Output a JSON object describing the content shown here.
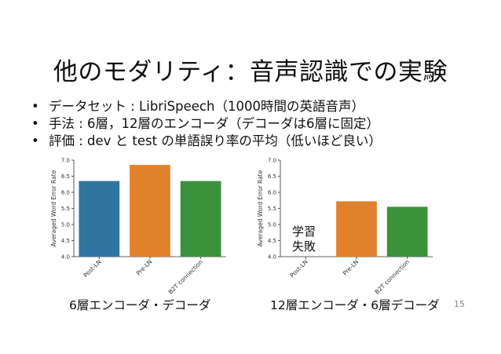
{
  "slide": {
    "title": "他のモダリティ：音声認識での実験",
    "bullets": [
      "データセット : LibriSpeech（1000時間の英語音声）",
      "手法 : 6層，12層のエンコーダ（デコーダは6層に固定）",
      "評価 : dev と test の単語誤り率の平均（低いほど良い）"
    ],
    "page_number": "15"
  },
  "chart_data": [
    {
      "type": "bar",
      "caption": "6層エンコーダ・デコーダ",
      "ylabel": "Averaged Word Error Rate",
      "ylim": [
        4.0,
        7.0
      ],
      "yticks": [
        "4.0",
        "4.5",
        "5.0",
        "5.5",
        "6.0",
        "6.5",
        "7.0"
      ],
      "categories": [
        "Post-LN",
        "Pre-LN",
        "B2T connection"
      ],
      "values": [
        6.35,
        6.85,
        6.35
      ],
      "colors": [
        "#3274a1",
        "#e1812c",
        "#3a923a"
      ]
    },
    {
      "type": "bar",
      "caption": "12層エンコーダ・6層デコーダ",
      "ylabel": "Averaged Word Error Rate",
      "ylim": [
        4.0,
        7.0
      ],
      "yticks": [
        "4.0",
        "4.5",
        "5.0",
        "5.5",
        "6.0",
        "6.5",
        "7.0"
      ],
      "categories": [
        "Post-LN",
        "Pre-LN",
        "B2T connection"
      ],
      "values": [
        null,
        5.72,
        5.55
      ],
      "colors": [
        "#3274a1",
        "#e1812c",
        "#3a923a"
      ],
      "annotation": [
        "学習",
        "失敗"
      ]
    }
  ]
}
